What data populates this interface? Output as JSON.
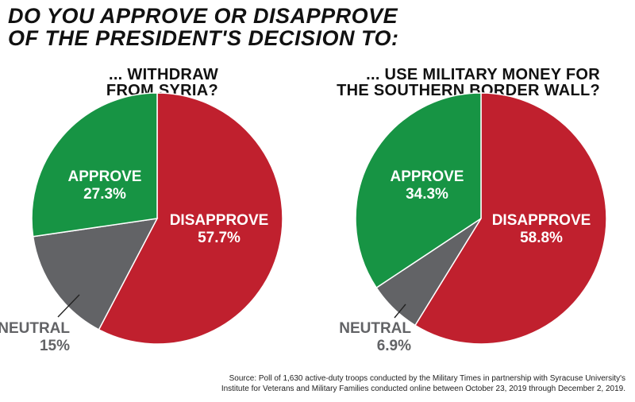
{
  "heading": {
    "line1": "DO YOU APPROVE OR DISAPPROVE",
    "line2": "OF THE PRESIDENT'S DECISION TO:"
  },
  "source_note": {
    "line1": "Source: Poll of 1,630 active-duty troops conducted by the Military Times in partnership with Syracuse University's",
    "line2": "Institute for Veterans and Military Families conducted online between October 23, 2019 through December 2, 2019."
  },
  "colors": {
    "disapprove": "#C0202E",
    "approve": "#179444",
    "neutral": "#626366",
    "neutral_text": "#626366"
  },
  "chart_data": [
    {
      "type": "pie",
      "title_line1": "... WITHDRAW",
      "title_line2": "FROM SYRIA?",
      "slices": [
        {
          "label": "DISAPPROVE",
          "value": 57.7,
          "display": "57.7%",
          "color": "#C0202E"
        },
        {
          "label": "NEUTRAL",
          "value": 15,
          "display": "15%",
          "color": "#626366"
        },
        {
          "label": "APPROVE",
          "value": 27.3,
          "display": "27.3%",
          "color": "#179444"
        }
      ]
    },
    {
      "type": "pie",
      "title_line1": "... USE MILITARY MONEY FOR",
      "title_line2": "THE SOUTHERN BORDER WALL?",
      "slices": [
        {
          "label": "DISAPPROVE",
          "value": 58.8,
          "display": "58.8%",
          "color": "#C0202E"
        },
        {
          "label": "NEUTRAL",
          "value": 6.9,
          "display": "6.9%",
          "color": "#626366"
        },
        {
          "label": "APPROVE",
          "value": 34.3,
          "display": "34.3%",
          "color": "#179444"
        }
      ]
    }
  ]
}
